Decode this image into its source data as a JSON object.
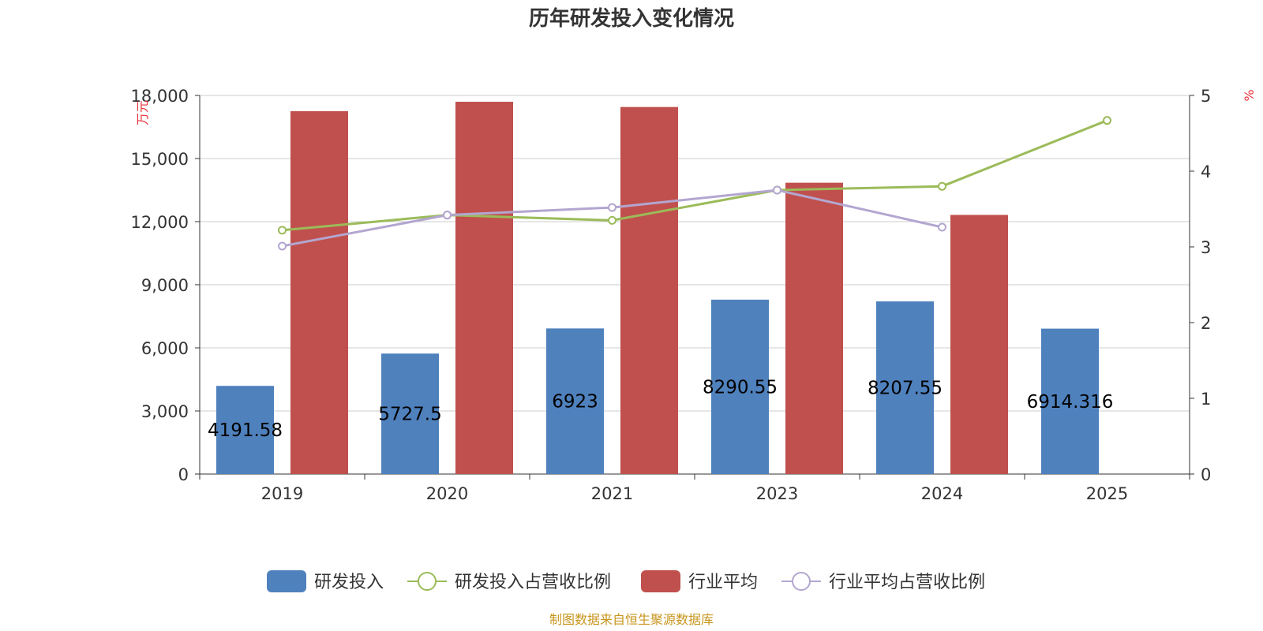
{
  "chart_data": {
    "type": "bar",
    "title": "历年研发投入变化情况",
    "categories": [
      "2019",
      "2020",
      "2021",
      "2023",
      "2024",
      "2025"
    ],
    "series": [
      {
        "name": "研发投入",
        "kind": "bar",
        "axis": "left",
        "color": "#4f81bd",
        "values": [
          4191.58,
          5727.5,
          6923,
          8290.55,
          8207.55,
          6914.316
        ],
        "labels": [
          "4191.58",
          "5727.5",
          "6923",
          "8290.55",
          "8207.55",
          "6914.316"
        ]
      },
      {
        "name": "研发投入占营收比例",
        "kind": "line",
        "axis": "right",
        "color": "#9bbb59",
        "values": [
          3.22,
          3.42,
          3.35,
          3.75,
          3.8,
          4.67
        ]
      },
      {
        "name": "行业平均",
        "kind": "bar",
        "axis": "left",
        "color": "#c0504d",
        "values": [
          17250,
          17700,
          17450,
          13850,
          12320,
          null
        ]
      },
      {
        "name": "行业平均占营收比例",
        "kind": "line",
        "axis": "right",
        "color": "#b3a6d0",
        "values": [
          3.01,
          3.42,
          3.52,
          3.75,
          3.26,
          null
        ]
      }
    ],
    "left_axis": {
      "unit": "万元",
      "ylim": [
        0,
        18000
      ],
      "ticks": [
        0,
        3000,
        6000,
        9000,
        12000,
        15000,
        18000
      ],
      "tick_labels": [
        "0",
        "3,000",
        "6,000",
        "9,000",
        "12,000",
        "15,000",
        "18,000"
      ]
    },
    "right_axis": {
      "unit": "%",
      "ylim": [
        0,
        5
      ],
      "ticks": [
        0,
        1,
        2,
        3,
        4,
        5
      ],
      "tick_labels": [
        "0",
        "1",
        "2",
        "3",
        "4",
        "5"
      ]
    },
    "grid": true,
    "legend_position": "bottom-center"
  },
  "footer": {
    "source": "制图数据来自恒生聚源数据库"
  }
}
